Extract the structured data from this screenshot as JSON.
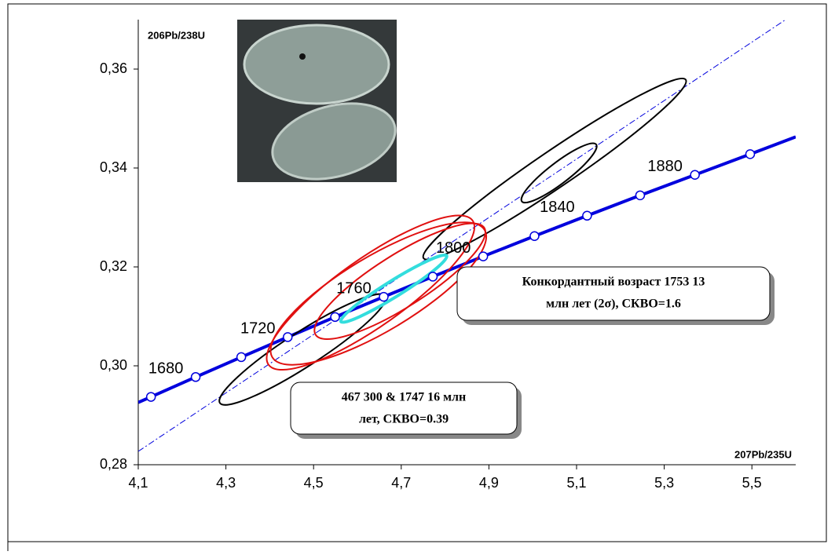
{
  "chart_data": {
    "type": "concordia",
    "y_axis_label": "206Pb/238U",
    "x_axis_label": "207Pb/235U",
    "xlim": [
      4.1,
      5.6
    ],
    "xticks": [
      {
        "value": 4.1,
        "label": "4,1"
      },
      {
        "value": 4.3,
        "label": "4,3"
      },
      {
        "value": 4.5,
        "label": "4,5"
      },
      {
        "value": 4.7,
        "label": "4,7"
      },
      {
        "value": 4.9,
        "label": "4,9"
      },
      {
        "value": 5.1,
        "label": "5,1"
      },
      {
        "value": 5.3,
        "label": "5,3"
      },
      {
        "value": 5.5,
        "label": "5,5"
      }
    ],
    "ylim": [
      0.28,
      0.37
    ],
    "yticks": [
      {
        "value": 0.28,
        "label": "0,28"
      },
      {
        "value": 0.3,
        "label": "0,30"
      },
      {
        "value": 0.32,
        "label": "0,32"
      },
      {
        "value": 0.34,
        "label": "0,34"
      },
      {
        "value": 0.36,
        "label": "0,36"
      }
    ],
    "concordia": {
      "color": "#0000dd",
      "x": [
        4.1,
        4.129,
        4.231,
        4.335,
        4.441,
        4.549,
        4.66,
        4.772,
        4.887,
        5.004,
        5.124,
        5.245,
        5.37,
        5.496,
        5.6
      ],
      "y": [
        0.2926,
        0.29372,
        0.29773,
        0.30176,
        0.30581,
        0.30987,
        0.31395,
        0.31803,
        0.32213,
        0.32623,
        0.33035,
        0.33447,
        0.33861,
        0.3428,
        0.3463
      ]
    },
    "points": {
      "x": [
        4.129,
        4.231,
        4.335,
        4.441,
        4.549,
        4.66,
        4.772,
        4.887,
        5.004,
        5.124,
        5.245,
        5.37,
        5.496
      ],
      "y": [
        0.29372,
        0.29773,
        0.30176,
        0.30581,
        0.30987,
        0.31395,
        0.31803,
        0.32213,
        0.32623,
        0.33035,
        0.33447,
        0.33861,
        0.3428
      ],
      "labels": [
        null,
        "1680",
        null,
        "1720",
        null,
        "1760",
        null,
        "1800",
        null,
        "1840",
        null,
        "1880",
        null
      ]
    },
    "equiline": {
      "color": "#0000dd",
      "x": [
        4.1,
        5.577
      ],
      "y": [
        0.2827,
        0.37
      ]
    },
    "ellipses": [
      {
        "color": "#000000",
        "x": 4.475,
        "y": 0.3033,
        "sx": 0.19,
        "sy": 0.0112,
        "rho": 0.93
      },
      {
        "color": "#000000",
        "x": 5.05,
        "y": 0.3398,
        "sx": 0.3,
        "sy": 0.0183,
        "rho": 0.97
      },
      {
        "color": "#000000",
        "x": 5.06,
        "y": 0.339,
        "sx": 0.086,
        "sy": 0.006,
        "rho": 0.9
      },
      {
        "color": "#e01010",
        "x": 4.63,
        "y": 0.3148,
        "sx": 0.237,
        "sy": 0.0156,
        "rho": 0.85
      },
      {
        "color": "#e01010",
        "x": 4.648,
        "y": 0.3146,
        "sx": 0.246,
        "sy": 0.0144,
        "rho": 0.8
      },
      {
        "color": "#e01010",
        "x": 4.697,
        "y": 0.3171,
        "sx": 0.195,
        "sy": 0.0117,
        "rho": 0.85
      },
      {
        "color": "#33dddd",
        "x": 4.683,
        "y": 0.3156,
        "sx": 0.121,
        "sy": 0.0068,
        "rho": 0.96
      }
    ],
    "annotations": [
      {
        "lines": [
          "Конкордантный возраст 1753   13",
          "млн лет (2σ), СКВО=1.6"
        ]
      },
      {
        "lines": [
          "467  300 & 1747  16  млн",
          "лет, СКВО=0.39"
        ]
      }
    ]
  }
}
